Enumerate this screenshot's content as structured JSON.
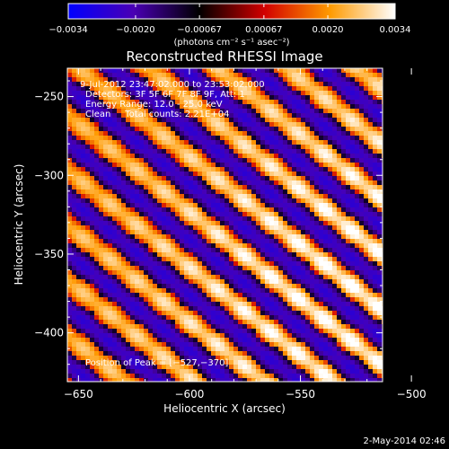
{
  "chart_data": {
    "type": "heatmap",
    "title": "Reconstructed RHESSI Image",
    "xlabel": "Heliocentric X (arcsec)",
    "ylabel": "Heliocentric Y (arcsec)",
    "xlim": [
      -655,
      -513
    ],
    "ylim": [
      -431,
      -232
    ],
    "x_ticks": [
      -650,
      -600,
      -550,
      -500
    ],
    "y_ticks": [
      -250,
      -300,
      -350,
      -400
    ],
    "x_tick_labels": [
      "−650",
      "−600",
      "−550",
      "−500"
    ],
    "y_tick_labels": [
      "−250",
      "−300",
      "−350",
      "−400"
    ],
    "colorbar": {
      "range": [
        -0.0034,
        0.0034
      ],
      "ticks": [
        -0.0034,
        -0.002,
        -0.00067,
        0.00067,
        0.002,
        0.0034
      ],
      "tick_labels": [
        "−0.0034",
        "−0.0020",
        "−0.00067",
        "0.00067",
        "0.0020",
        "0.0034"
      ],
      "unit_label": "(photons cm⁻² s⁻¹ asec⁻²)",
      "colormap": [
        "#0000ff",
        "#4a00b4",
        "#000000",
        "#d20000",
        "#ff9a00",
        "#ffffff"
      ]
    },
    "annotations": [
      "9-Jul-2012 23:47:02.000 to 23:53:02.000",
      "Detectors: 3F 5F 6F 7F 8F 9F, Att: 1",
      "Energy Range: 12.0 - 25.0 keV",
      "Clean     Total counts: 2.21E+04"
    ],
    "peak_label": "Position of Peak = [−527,−370]",
    "peak": [
      -527,
      -370
    ],
    "pattern": "diagonal stripes of alternating bright (yellow/white) and dark (purple) bands running from upper-left to lower-right",
    "grid": false,
    "legend": "none"
  },
  "footer": {
    "date": "2-May-2014 02:46"
  }
}
